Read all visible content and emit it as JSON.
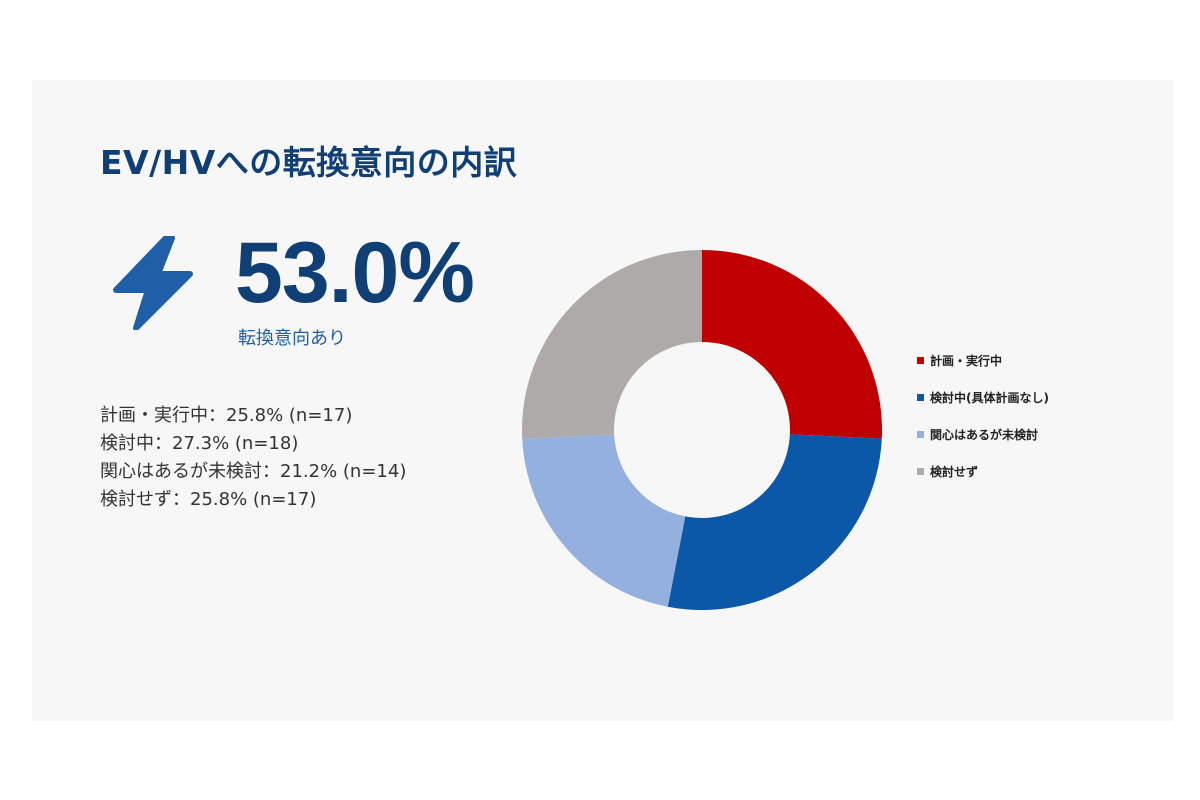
{
  "title": "EV/HVへの転換意向の内訳",
  "headline": {
    "value": "53.0%",
    "caption": "転換意向あり",
    "icon": "lightning-bolt-icon",
    "icon_color": "#1f5fa8"
  },
  "breakdown": [
    "計画・実行中：25.8% (n=17)",
    "検討中：27.3% (n=18)",
    "関心はあるが未検討：21.2% (n=14)",
    "検討せず：25.8% (n=17)"
  ],
  "colors": {
    "title": "#0f3f75",
    "accent": "#1f5fa8",
    "background": "#f7f7f7"
  },
  "chart_data": {
    "type": "pie",
    "donut": true,
    "categories": [
      "計画・実行中",
      "検討中(具体計画なし)",
      "関心はあるが未検討",
      "検討せず"
    ],
    "values": [
      25.8,
      27.3,
      21.2,
      25.8
    ],
    "colors": [
      "#c00000",
      "#0b57a8",
      "#94b0de",
      "#aeaaa9"
    ],
    "legend_position": "right"
  }
}
